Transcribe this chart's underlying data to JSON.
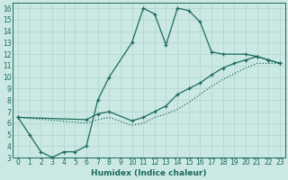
{
  "xlabel": "Humidex (Indice chaleur)",
  "bg_color": "#cce8e4",
  "line_color": "#1a6b5a",
  "grid_color": "#b0d8d0",
  "xlim": [
    -0.5,
    23.5
  ],
  "ylim": [
    3,
    16.5
  ],
  "xticks": [
    0,
    1,
    2,
    3,
    4,
    5,
    6,
    7,
    8,
    9,
    10,
    11,
    12,
    13,
    14,
    15,
    16,
    17,
    18,
    19,
    20,
    21,
    22,
    23
  ],
  "yticks": [
    3,
    4,
    5,
    6,
    7,
    8,
    9,
    10,
    11,
    12,
    13,
    14,
    15,
    16
  ],
  "lines": [
    {
      "x": [
        0,
        1,
        2,
        3,
        4,
        5,
        6,
        7,
        8,
        10,
        11,
        12,
        13,
        14,
        15,
        16,
        17,
        18,
        20,
        21,
        22,
        23
      ],
      "y": [
        6.5,
        5.0,
        3.5,
        3.0,
        3.5,
        3.5,
        4.0,
        8.0,
        10.0,
        13.0,
        16.0,
        15.5,
        12.8,
        16.0,
        15.8,
        14.8,
        12.2,
        12.0,
        12.0,
        11.8,
        11.5,
        11.2
      ],
      "style": "solid",
      "marker": true
    },
    {
      "x": [
        0,
        6,
        7,
        8,
        10,
        11,
        12,
        13,
        14,
        15,
        16,
        17,
        18,
        19,
        20,
        21,
        22,
        23
      ],
      "y": [
        6.5,
        6.3,
        6.8,
        7.0,
        6.2,
        6.5,
        7.0,
        7.5,
        8.5,
        9.0,
        9.5,
        10.2,
        10.8,
        11.2,
        11.5,
        11.8,
        11.5,
        11.2
      ],
      "style": "solid",
      "marker": true
    },
    {
      "x": [
        0,
        6,
        7,
        8,
        10,
        11,
        12,
        13,
        14,
        15,
        16,
        17,
        18,
        19,
        20,
        21,
        22,
        23
      ],
      "y": [
        6.5,
        6.0,
        6.3,
        6.5,
        5.8,
        6.0,
        6.5,
        6.8,
        7.2,
        7.8,
        8.5,
        9.2,
        9.8,
        10.3,
        10.8,
        11.2,
        11.2,
        11.2
      ],
      "style": "dotted",
      "marker": false
    }
  ]
}
